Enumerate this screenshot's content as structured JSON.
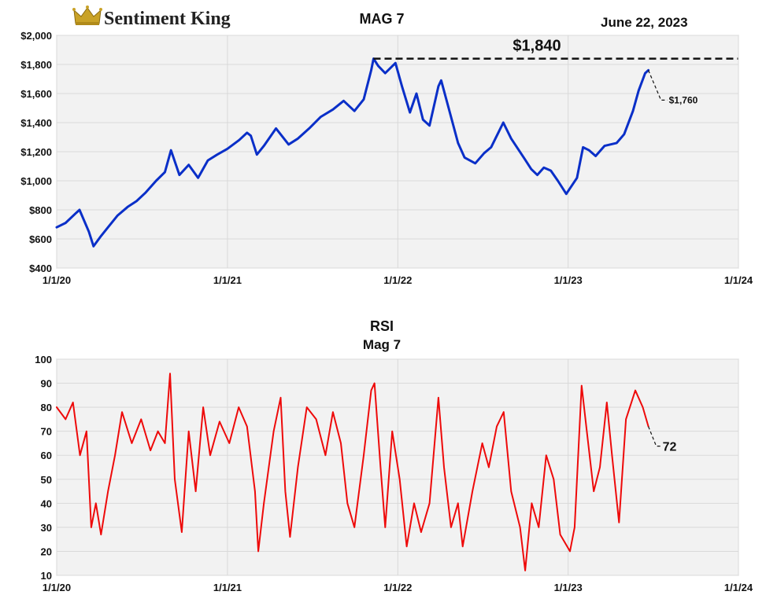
{
  "brand": {
    "name": "Sentiment King",
    "icon": "crown-icon"
  },
  "date": "June 22, 2023",
  "colors": {
    "price": "#0a2fc8",
    "rsi": "#ee0a0a",
    "plot_bg": "#f2f2f2",
    "grid": "#d9d9d9"
  },
  "chart_data": [
    {
      "type": "line",
      "title": "MAG 7",
      "ylim": [
        400,
        2000
      ],
      "yticks": [
        400,
        600,
        800,
        1000,
        1200,
        1400,
        1600,
        1800,
        2000
      ],
      "ytick_labels": [
        "$400",
        "$600",
        "$800",
        "$1,000",
        "$1,200",
        "$1,400",
        "$1,600",
        "$1,800",
        "$2,000"
      ],
      "xlim": [
        "2020-01-01",
        "2024-01-01"
      ],
      "xtick_labels": [
        "1/1/20",
        "1/1/21",
        "1/1/22",
        "1/1/23",
        "1/1/24"
      ],
      "grid": "vertical at ticks, horizontal at y ticks",
      "series": [
        {
          "color": "#0a2fc8",
          "points": [
            [
              "2020-01-01",
              680
            ],
            [
              "2020-01-20",
              710
            ],
            [
              "2020-02-12",
              780
            ],
            [
              "2020-02-19",
              800
            ],
            [
              "2020-03-10",
              650
            ],
            [
              "2020-03-20",
              550
            ],
            [
              "2020-04-05",
              620
            ],
            [
              "2020-04-20",
              680
            ],
            [
              "2020-05-10",
              760
            ],
            [
              "2020-06-01",
              820
            ],
            [
              "2020-06-20",
              860
            ],
            [
              "2020-07-10",
              920
            ],
            [
              "2020-08-01",
              1000
            ],
            [
              "2020-08-20",
              1060
            ],
            [
              "2020-09-02",
              1210
            ],
            [
              "2020-09-20",
              1040
            ],
            [
              "2020-10-10",
              1110
            ],
            [
              "2020-10-30",
              1020
            ],
            [
              "2020-11-20",
              1140
            ],
            [
              "2020-12-10",
              1180
            ],
            [
              "2021-01-01",
              1220
            ],
            [
              "2021-01-26",
              1280
            ],
            [
              "2021-02-12",
              1330
            ],
            [
              "2021-02-20",
              1310
            ],
            [
              "2021-03-05",
              1180
            ],
            [
              "2021-03-20",
              1240
            ],
            [
              "2021-04-15",
              1360
            ],
            [
              "2021-05-12",
              1250
            ],
            [
              "2021-06-01",
              1290
            ],
            [
              "2021-06-25",
              1360
            ],
            [
              "2021-07-20",
              1440
            ],
            [
              "2021-08-15",
              1490
            ],
            [
              "2021-09-07",
              1550
            ],
            [
              "2021-09-30",
              1480
            ],
            [
              "2021-10-20",
              1560
            ],
            [
              "2021-11-05",
              1760
            ],
            [
              "2021-11-10",
              1840
            ],
            [
              "2021-11-20",
              1790
            ],
            [
              "2021-12-05",
              1740
            ],
            [
              "2021-12-27",
              1810
            ],
            [
              "2022-01-10",
              1650
            ],
            [
              "2022-01-27",
              1470
            ],
            [
              "2022-02-10",
              1600
            ],
            [
              "2022-02-24",
              1420
            ],
            [
              "2022-03-10",
              1380
            ],
            [
              "2022-03-29",
              1650
            ],
            [
              "2022-04-04",
              1690
            ],
            [
              "2022-04-20",
              1500
            ],
            [
              "2022-05-10",
              1260
            ],
            [
              "2022-05-24",
              1160
            ],
            [
              "2022-06-16",
              1120
            ],
            [
              "2022-07-05",
              1190
            ],
            [
              "2022-07-20",
              1230
            ],
            [
              "2022-08-15",
              1400
            ],
            [
              "2022-09-01",
              1290
            ],
            [
              "2022-09-30",
              1150
            ],
            [
              "2022-10-14",
              1080
            ],
            [
              "2022-10-27",
              1040
            ],
            [
              "2022-11-10",
              1090
            ],
            [
              "2022-11-25",
              1070
            ],
            [
              "2022-12-10",
              1000
            ],
            [
              "2022-12-28",
              910
            ],
            [
              "2023-01-20",
              1020
            ],
            [
              "2023-02-02",
              1230
            ],
            [
              "2023-02-15",
              1210
            ],
            [
              "2023-03-01",
              1170
            ],
            [
              "2023-03-20",
              1240
            ],
            [
              "2023-04-15",
              1260
            ],
            [
              "2023-05-01",
              1320
            ],
            [
              "2023-05-20",
              1480
            ],
            [
              "2023-06-01",
              1620
            ],
            [
              "2023-06-15",
              1740
            ],
            [
              "2023-06-22",
              1760
            ]
          ]
        }
      ],
      "annotations": [
        {
          "type": "hline",
          "y": 1840,
          "x_from": "2021-11-10",
          "x_to": "2023-12-31",
          "style": "dashed",
          "label": "$1,840"
        },
        {
          "type": "point-label",
          "x": "2023-06-22",
          "y": 1760,
          "label": "$1,760"
        }
      ]
    },
    {
      "type": "line",
      "title": "RSI",
      "subtitle": "Mag 7",
      "ylim": [
        10,
        100
      ],
      "yticks": [
        10,
        20,
        30,
        40,
        50,
        60,
        70,
        80,
        90,
        100
      ],
      "ytick_labels": [
        "10",
        "20",
        "30",
        "40",
        "50",
        "60",
        "70",
        "80",
        "90",
        "100"
      ],
      "xlim": [
        "2020-01-01",
        "2024-01-01"
      ],
      "xtick_labels": [
        "1/1/20",
        "1/1/21",
        "1/1/22",
        "1/1/23",
        "1/1/24"
      ],
      "grid": "vertical at ticks, horizontal at y ticks",
      "series": [
        {
          "color": "#ee0a0a",
          "points": [
            [
              "2020-01-01",
              80
            ],
            [
              "2020-01-20",
              75
            ],
            [
              "2020-02-05",
              82
            ],
            [
              "2020-02-20",
              60
            ],
            [
              "2020-03-05",
              70
            ],
            [
              "2020-03-15",
              30
            ],
            [
              "2020-03-25",
              40
            ],
            [
              "2020-04-05",
              27
            ],
            [
              "2020-04-20",
              45
            ],
            [
              "2020-05-05",
              60
            ],
            [
              "2020-05-20",
              78
            ],
            [
              "2020-06-10",
              65
            ],
            [
              "2020-06-30",
              75
            ],
            [
              "2020-07-20",
              62
            ],
            [
              "2020-08-05",
              70
            ],
            [
              "2020-08-20",
              65
            ],
            [
              "2020-08-31",
              94
            ],
            [
              "2020-09-10",
              50
            ],
            [
              "2020-09-25",
              28
            ],
            [
              "2020-10-10",
              70
            ],
            [
              "2020-10-25",
              45
            ],
            [
              "2020-11-10",
              80
            ],
            [
              "2020-11-25",
              60
            ],
            [
              "2020-12-15",
              74
            ],
            [
              "2021-01-05",
              65
            ],
            [
              "2021-01-25",
              80
            ],
            [
              "2021-02-12",
              72
            ],
            [
              "2021-03-01",
              45
            ],
            [
              "2021-03-08",
              20
            ],
            [
              "2021-03-20",
              40
            ],
            [
              "2021-04-10",
              70
            ],
            [
              "2021-04-25",
              84
            ],
            [
              "2021-05-05",
              45
            ],
            [
              "2021-05-15",
              26
            ],
            [
              "2021-06-01",
              55
            ],
            [
              "2021-06-20",
              80
            ],
            [
              "2021-07-10",
              75
            ],
            [
              "2021-07-30",
              60
            ],
            [
              "2021-08-15",
              78
            ],
            [
              "2021-09-01",
              65
            ],
            [
              "2021-09-15",
              40
            ],
            [
              "2021-09-30",
              30
            ],
            [
              "2021-10-20",
              60
            ],
            [
              "2021-11-05",
              87
            ],
            [
              "2021-11-12",
              90
            ],
            [
              "2021-11-25",
              55
            ],
            [
              "2021-12-05",
              30
            ],
            [
              "2021-12-20",
              70
            ],
            [
              "2022-01-05",
              50
            ],
            [
              "2022-01-20",
              22
            ],
            [
              "2022-02-05",
              40
            ],
            [
              "2022-02-20",
              28
            ],
            [
              "2022-03-10",
              40
            ],
            [
              "2022-03-29",
              84
            ],
            [
              "2022-04-10",
              55
            ],
            [
              "2022-04-25",
              30
            ],
            [
              "2022-05-10",
              40
            ],
            [
              "2022-05-20",
              22
            ],
            [
              "2022-06-10",
              45
            ],
            [
              "2022-07-01",
              65
            ],
            [
              "2022-07-15",
              55
            ],
            [
              "2022-08-01",
              72
            ],
            [
              "2022-08-16",
              78
            ],
            [
              "2022-09-01",
              45
            ],
            [
              "2022-09-20",
              30
            ],
            [
              "2022-10-01",
              12
            ],
            [
              "2022-10-15",
              40
            ],
            [
              "2022-10-30",
              30
            ],
            [
              "2022-11-15",
              60
            ],
            [
              "2022-12-01",
              50
            ],
            [
              "2022-12-15",
              27
            ],
            [
              "2023-01-05",
              20
            ],
            [
              "2023-01-15",
              30
            ],
            [
              "2023-01-30",
              89
            ],
            [
              "2023-02-10",
              70
            ],
            [
              "2023-02-25",
              45
            ],
            [
              "2023-03-10",
              55
            ],
            [
              "2023-03-25",
              82
            ],
            [
              "2023-04-05",
              60
            ],
            [
              "2023-04-20",
              32
            ],
            [
              "2023-05-05",
              75
            ],
            [
              "2023-05-25",
              87
            ],
            [
              "2023-06-10",
              80
            ],
            [
              "2023-06-22",
              72
            ]
          ]
        }
      ],
      "annotations": [
        {
          "type": "point-label",
          "x": "2023-06-22",
          "y": 72,
          "label": "72"
        }
      ]
    }
  ]
}
